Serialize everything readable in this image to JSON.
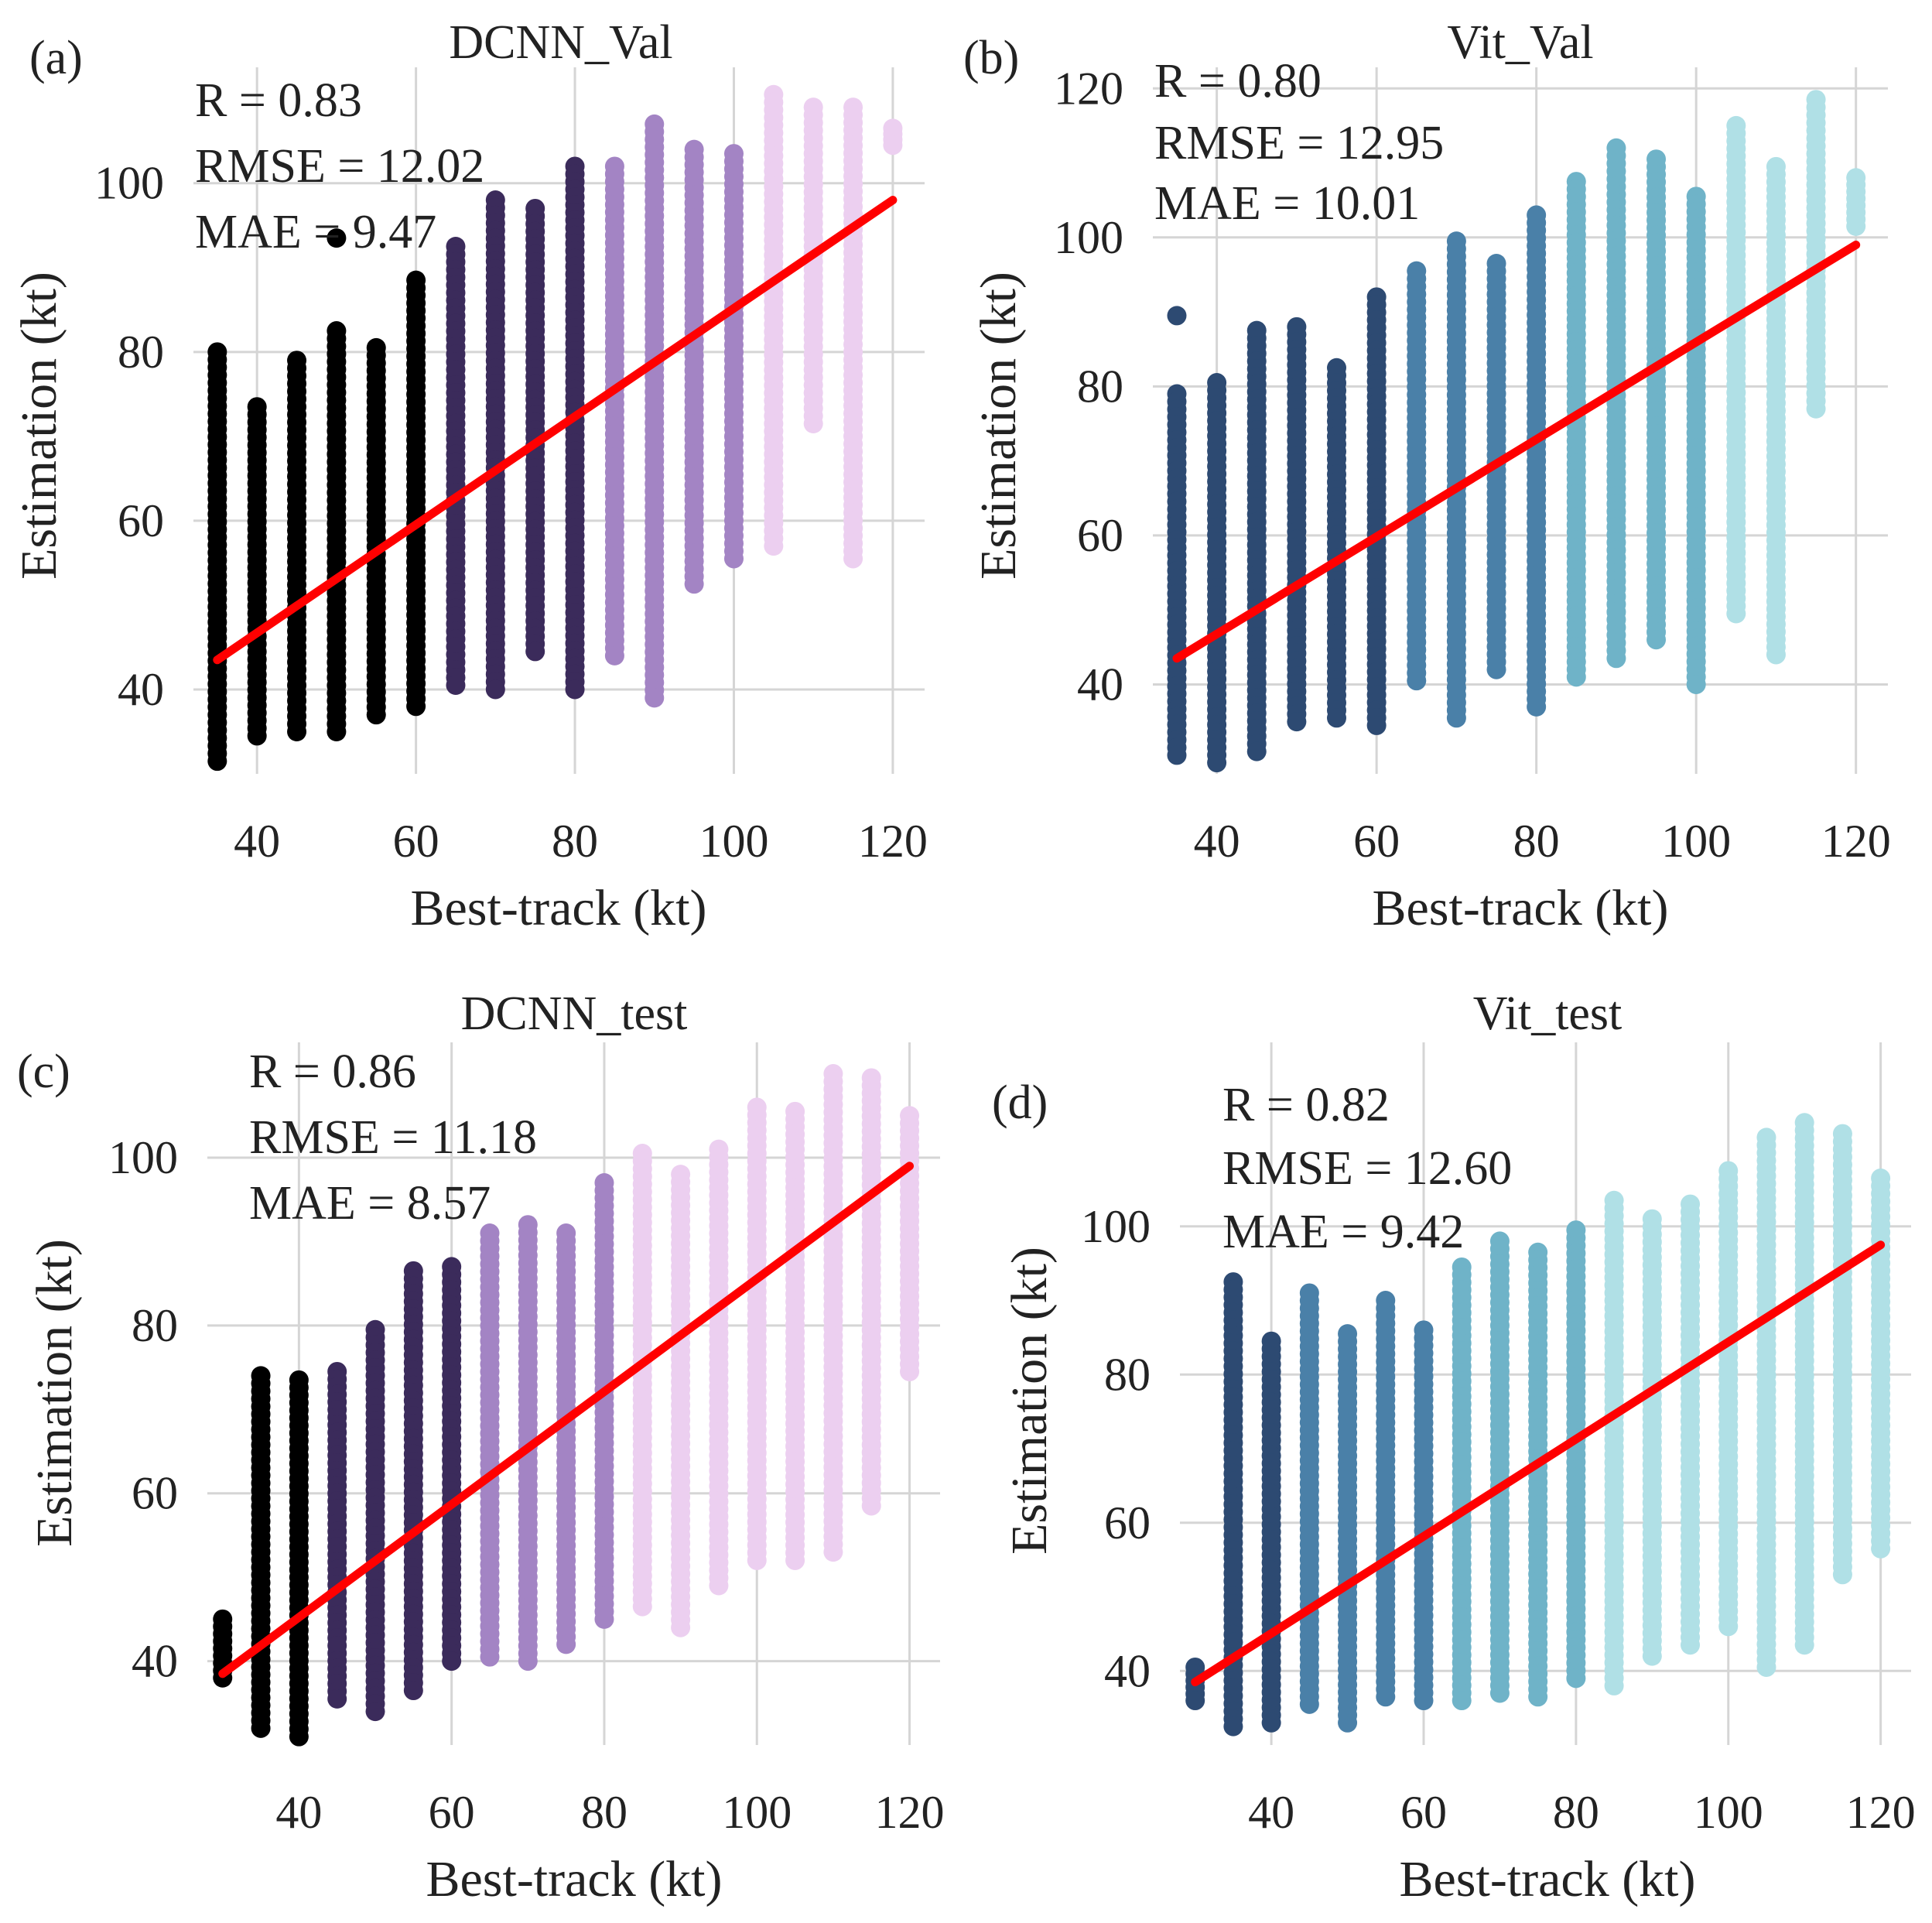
{
  "chart_data": [
    {
      "type": "scatter",
      "panel_label": "(a)",
      "title": "DCNN_Val",
      "xlabel": "Best-track (kt)",
      "ylabel": "Estimation (kt)",
      "xlim": [
        32,
        124
      ],
      "ylim": [
        30,
        113
      ],
      "xticks": [
        "40",
        "60",
        "80",
        "100",
        "120"
      ],
      "xtick_values": [
        40,
        60,
        80,
        100,
        120
      ],
      "yticks": [
        "40",
        "60",
        "80",
        "100"
      ],
      "ytick_values": [
        40,
        60,
        80,
        100
      ],
      "stats": [
        "R = 0.83",
        "RMSE = 12.02",
        "MAE = 9.47"
      ],
      "fit_line": {
        "x": [
          35,
          120
        ],
        "y": [
          43.5,
          98.0
        ],
        "color": "#ff0000"
      },
      "series": [
        {
          "x": 35,
          "min": 31.5,
          "max": 80,
          "color": "#000000"
        },
        {
          "x": 40,
          "min": 34.5,
          "max": 73.5,
          "color": "#000000"
        },
        {
          "x": 45,
          "min": 35,
          "max": 79,
          "color": "#000000"
        },
        {
          "x": 50,
          "min": 35,
          "max": 82.5,
          "color": "#000000",
          "outliers": [
            93.5
          ]
        },
        {
          "x": 55,
          "min": 37,
          "max": 80.5,
          "color": "#000000"
        },
        {
          "x": 60,
          "min": 38,
          "max": 88.5,
          "color": "#000000"
        },
        {
          "x": 65,
          "min": 40.5,
          "max": 92.5,
          "color": "#3b2b5b"
        },
        {
          "x": 70,
          "min": 40,
          "max": 98,
          "color": "#3b2b5b"
        },
        {
          "x": 75,
          "min": 44.5,
          "max": 97,
          "color": "#3b2b5b"
        },
        {
          "x": 80,
          "min": 40,
          "max": 102,
          "color": "#3b2b5b"
        },
        {
          "x": 85,
          "min": 44,
          "max": 102,
          "color": "#a384c4"
        },
        {
          "x": 90,
          "min": 39,
          "max": 107,
          "color": "#a384c4"
        },
        {
          "x": 95,
          "min": 52.5,
          "max": 104,
          "color": "#a384c4"
        },
        {
          "x": 100,
          "min": 55.5,
          "max": 103.5,
          "color": "#a384c4"
        },
        {
          "x": 105,
          "min": 57,
          "max": 110.5,
          "color": "#eccff0"
        },
        {
          "x": 110,
          "min": 71.5,
          "max": 109,
          "color": "#eccff0"
        },
        {
          "x": 115,
          "min": 55.5,
          "max": 109,
          "color": "#eccff0"
        },
        {
          "x": 120,
          "min": 104.5,
          "max": 106.5,
          "color": "#eccff0"
        }
      ]
    },
    {
      "type": "scatter",
      "panel_label": "(b)",
      "title": "Vit_Val",
      "xlabel": "Best-track (kt)",
      "ylabel": "Estimation (kt)",
      "xlim": [
        32,
        124
      ],
      "ylim": [
        28,
        122
      ],
      "xticks": [
        "40",
        "60",
        "80",
        "100",
        "120"
      ],
      "xtick_values": [
        40,
        60,
        80,
        100,
        120
      ],
      "yticks": [
        "40",
        "60",
        "80",
        "100",
        "120"
      ],
      "ytick_values": [
        40,
        60,
        80,
        100,
        120
      ],
      "stats": [
        "R = 0.80",
        "RMSE = 12.95",
        "MAE = 10.01"
      ],
      "fit_line": {
        "x": [
          35,
          120
        ],
        "y": [
          43.5,
          99.0
        ],
        "color": "#ff0000"
      },
      "series": [
        {
          "x": 35,
          "min": 30.5,
          "max": 79,
          "color": "#2d4a72",
          "outliers": [
            89.5
          ]
        },
        {
          "x": 40,
          "min": 29.5,
          "max": 80.5,
          "color": "#2d4a72"
        },
        {
          "x": 45,
          "min": 31,
          "max": 87.5,
          "color": "#2d4a72"
        },
        {
          "x": 50,
          "min": 35,
          "max": 88,
          "color": "#2d4a72"
        },
        {
          "x": 55,
          "min": 35.5,
          "max": 82.5,
          "color": "#2d4a72"
        },
        {
          "x": 60,
          "min": 34.5,
          "max": 92,
          "color": "#2d4a72"
        },
        {
          "x": 65,
          "min": 40.5,
          "max": 95.5,
          "color": "#4a80a8"
        },
        {
          "x": 70,
          "min": 35.5,
          "max": 99.5,
          "color": "#4a80a8"
        },
        {
          "x": 75,
          "min": 42,
          "max": 96.5,
          "color": "#4a80a8"
        },
        {
          "x": 80,
          "min": 37,
          "max": 103,
          "color": "#4a80a8"
        },
        {
          "x": 85,
          "min": 41,
          "max": 107.5,
          "color": "#6fb3c8"
        },
        {
          "x": 90,
          "min": 43.5,
          "max": 112,
          "color": "#6fb3c8"
        },
        {
          "x": 95,
          "min": 46,
          "max": 110.5,
          "color": "#6fb3c8"
        },
        {
          "x": 100,
          "min": 40,
          "max": 105.5,
          "color": "#6fb3c8"
        },
        {
          "x": 105,
          "min": 49.5,
          "max": 115,
          "color": "#b0e0e6"
        },
        {
          "x": 110,
          "min": 44,
          "max": 109.5,
          "color": "#b0e0e6"
        },
        {
          "x": 115,
          "min": 77,
          "max": 118.5,
          "color": "#b0e0e6"
        },
        {
          "x": 120,
          "min": 101.5,
          "max": 108,
          "color": "#b0e0e6"
        }
      ]
    },
    {
      "type": "scatter",
      "panel_label": "(c)",
      "title": "DCNN_test",
      "xlabel": "Best-track (kt)",
      "ylabel": "Estimation (kt)",
      "xlim": [
        28,
        124
      ],
      "ylim": [
        30,
        113
      ],
      "xticks": [
        "40",
        "60",
        "80",
        "100",
        "120"
      ],
      "xtick_values": [
        40,
        60,
        80,
        100,
        120
      ],
      "yticks": [
        "40",
        "60",
        "80",
        "100"
      ],
      "ytick_values": [
        40,
        60,
        80,
        100
      ],
      "stats": [
        "R = 0.86",
        "RMSE = 11.18",
        "MAE = 8.57"
      ],
      "fit_line": {
        "x": [
          30,
          120
        ],
        "y": [
          38.5,
          99.0
        ],
        "color": "#ff0000"
      },
      "series": [
        {
          "x": 30,
          "min": 38,
          "max": 45,
          "color": "#000000"
        },
        {
          "x": 35,
          "min": 32,
          "max": 74,
          "color": "#000000"
        },
        {
          "x": 40,
          "min": 31,
          "max": 73.5,
          "color": "#000000"
        },
        {
          "x": 45,
          "min": 35.5,
          "max": 74.5,
          "color": "#3b2b5b"
        },
        {
          "x": 50,
          "min": 34,
          "max": 79.5,
          "color": "#3b2b5b"
        },
        {
          "x": 55,
          "min": 36.5,
          "max": 86.5,
          "color": "#3b2b5b"
        },
        {
          "x": 60,
          "min": 40,
          "max": 87,
          "color": "#3b2b5b"
        },
        {
          "x": 65,
          "min": 40.5,
          "max": 91,
          "color": "#a384c4"
        },
        {
          "x": 70,
          "min": 40,
          "max": 92,
          "color": "#a384c4"
        },
        {
          "x": 75,
          "min": 42,
          "max": 91,
          "color": "#a384c4"
        },
        {
          "x": 80,
          "min": 45,
          "max": 97,
          "color": "#a384c4"
        },
        {
          "x": 85,
          "min": 46.5,
          "max": 100.5,
          "color": "#eccff0"
        },
        {
          "x": 90,
          "min": 44,
          "max": 98,
          "color": "#eccff0"
        },
        {
          "x": 95,
          "min": 49,
          "max": 101,
          "color": "#eccff0"
        },
        {
          "x": 100,
          "min": 52,
          "max": 106,
          "color": "#eccff0"
        },
        {
          "x": 105,
          "min": 52,
          "max": 105.5,
          "color": "#eccff0"
        },
        {
          "x": 110,
          "min": 53,
          "max": 110,
          "color": "#eccff0"
        },
        {
          "x": 115,
          "min": 58.5,
          "max": 109.5,
          "color": "#eccff0"
        },
        {
          "x": 120,
          "min": 74.5,
          "max": 105,
          "color": "#eccff0"
        }
      ]
    },
    {
      "type": "scatter",
      "panel_label": "(d)",
      "title": "Vit_test",
      "xlabel": "Best-track (kt)",
      "ylabel": "Estimation (kt)",
      "xlim": [
        28,
        124
      ],
      "ylim": [
        30,
        124
      ],
      "xticks": [
        "40",
        "60",
        "80",
        "100",
        "120"
      ],
      "xtick_values": [
        40,
        60,
        80,
        100,
        120
      ],
      "yticks": [
        "40",
        "60",
        "80",
        "100"
      ],
      "ytick_values": [
        40,
        60,
        80,
        100
      ],
      "stats": [
        "R = 0.82",
        "RMSE = 12.60",
        "MAE = 9.42"
      ],
      "fit_line": {
        "x": [
          30,
          120
        ],
        "y": [
          38.5,
          97.5
        ],
        "color": "#ff0000"
      },
      "series": [
        {
          "x": 30,
          "min": 36,
          "max": 40.5,
          "color": "#2d4a72"
        },
        {
          "x": 35,
          "min": 32.5,
          "max": 92.5,
          "color": "#2d4a72"
        },
        {
          "x": 40,
          "min": 33,
          "max": 84.5,
          "color": "#2d4a72"
        },
        {
          "x": 45,
          "min": 35.5,
          "max": 91,
          "color": "#4a80a8"
        },
        {
          "x": 50,
          "min": 33,
          "max": 85.5,
          "color": "#4a80a8"
        },
        {
          "x": 55,
          "min": 36.5,
          "max": 90,
          "color": "#4a80a8"
        },
        {
          "x": 60,
          "min": 36,
          "max": 86,
          "color": "#4a80a8"
        },
        {
          "x": 65,
          "min": 36,
          "max": 94.5,
          "color": "#6fb3c8"
        },
        {
          "x": 70,
          "min": 37,
          "max": 98,
          "color": "#6fb3c8"
        },
        {
          "x": 75,
          "min": 36.5,
          "max": 96.5,
          "color": "#6fb3c8"
        },
        {
          "x": 80,
          "min": 39,
          "max": 99.5,
          "color": "#6fb3c8"
        },
        {
          "x": 85,
          "min": 38,
          "max": 103.5,
          "color": "#b0e0e6"
        },
        {
          "x": 90,
          "min": 42,
          "max": 101,
          "color": "#b0e0e6"
        },
        {
          "x": 95,
          "min": 43.5,
          "max": 103,
          "color": "#b0e0e6"
        },
        {
          "x": 100,
          "min": 46,
          "max": 107.5,
          "color": "#b0e0e6"
        },
        {
          "x": 105,
          "min": 40.5,
          "max": 112,
          "color": "#b0e0e6"
        },
        {
          "x": 110,
          "min": 43.5,
          "max": 114,
          "color": "#b0e0e6"
        },
        {
          "x": 115,
          "min": 53,
          "max": 112.5,
          "color": "#b0e0e6"
        },
        {
          "x": 120,
          "min": 56.5,
          "max": 106.5,
          "color": "#b0e0e6"
        }
      ]
    }
  ]
}
